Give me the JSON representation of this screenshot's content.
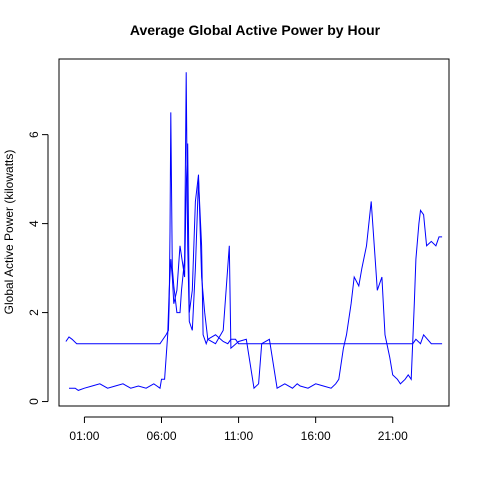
{
  "chart_data": {
    "type": "line",
    "title": "Average Global Active Power by Hour",
    "xlabel": "",
    "ylabel": "Global Active Power (kilowatts)",
    "xlim": [
      -0.65,
      24.65
    ],
    "ylim": [
      -0.1,
      7.7
    ],
    "x_ticks": [
      {
        "value": 1,
        "label": "01:00"
      },
      {
        "value": 6,
        "label": "06:00"
      },
      {
        "value": 11,
        "label": "11:00"
      },
      {
        "value": 16,
        "label": "16:00"
      },
      {
        "value": 21,
        "label": "21:00"
      }
    ],
    "y_ticks": [
      0,
      2,
      4,
      6
    ],
    "grid": false,
    "line_color": "#0000ff",
    "series": [
      {
        "x": [
          -0.2,
          0,
          0.2,
          0.5,
          0.6,
          1.0,
          1.5,
          2.0,
          2.5,
          3.0,
          3.5,
          4.0,
          4.5,
          5.0,
          5.5,
          5.9,
          6.0,
          6.3,
          6.45,
          6.5,
          6.55,
          6.6,
          6.7,
          6.8,
          7.0,
          7.2,
          7.3,
          7.5,
          7.6,
          7.7,
          7.8,
          8.0,
          8.2,
          8.4,
          8.6,
          8.7,
          8.8,
          8.9,
          9.0,
          9.5,
          10.0,
          10.3,
          10.5,
          10.8,
          11.0,
          11.3,
          11.5,
          12.0,
          12.5,
          12.8,
          13.0,
          13.5,
          14.0,
          14.5,
          15.0,
          15.5,
          16.0,
          16.5,
          17.0,
          17.5,
          17.8,
          18.0,
          18.5,
          19.0,
          19.3,
          19.5,
          19.8,
          20.0,
          20.5,
          21.0,
          21.5,
          22.0,
          22.3,
          22.5,
          22.8,
          23.0,
          23.5,
          24.0,
          24.2
        ],
        "y": [
          1.35,
          1.45,
          1.4,
          1.3,
          1.3,
          1.3,
          1.3,
          1.3,
          1.3,
          1.3,
          1.3,
          1.3,
          1.3,
          1.3,
          1.3,
          1.3,
          1.35,
          1.5,
          1.6,
          2.2,
          3.8,
          6.5,
          3.0,
          2.6,
          2.0,
          2.0,
          2.5,
          3.2,
          7.4,
          3.5,
          1.8,
          1.6,
          3.0,
          5.0,
          3.5,
          1.5,
          1.4,
          1.3,
          1.4,
          1.5,
          1.35,
          1.3,
          1.4,
          1.4,
          1.3,
          1.3,
          1.3,
          1.3,
          1.3,
          1.3,
          1.3,
          1.3,
          1.3,
          1.3,
          1.3,
          1.3,
          1.3,
          1.3,
          1.3,
          1.3,
          1.3,
          1.3,
          1.3,
          1.3,
          1.3,
          1.3,
          1.3,
          1.3,
          1.3,
          1.3,
          1.3,
          1.3,
          1.3,
          1.4,
          1.3,
          1.5,
          1.3,
          1.3,
          1.3
        ]
      },
      {
        "x": [
          0,
          0.2,
          0.4,
          0.6,
          1.0,
          1.5,
          2.0,
          2.5,
          3.0,
          3.5,
          4.0,
          4.5,
          5.0,
          5.5,
          5.7,
          5.9,
          6.0,
          6.2,
          6.4,
          6.5,
          6.6,
          6.7,
          6.8,
          7.0,
          7.2,
          7.5,
          7.6,
          7.7,
          7.8,
          8.0,
          8.2,
          8.4,
          8.6,
          8.8,
          9.0,
          9.5,
          10.0,
          10.4,
          10.5,
          11.0,
          11.5,
          12.0,
          12.3,
          12.5,
          13.0,
          13.5,
          14.0,
          14.5,
          14.8,
          15.0,
          15.5,
          16.0,
          16.5,
          17.0,
          17.3,
          17.5,
          17.8,
          18.0,
          18.3,
          18.5,
          18.8,
          19.0,
          19.3,
          19.6,
          19.9,
          20.0,
          20.3,
          20.5,
          20.8,
          21.0,
          21.3,
          21.5,
          21.8,
          22.0,
          22.2,
          22.4,
          22.5,
          22.7,
          22.8,
          23.0,
          23.2,
          23.5,
          23.8,
          24.0,
          24.2
        ],
        "y": [
          0.3,
          0.3,
          0.3,
          0.25,
          0.3,
          0.35,
          0.4,
          0.3,
          0.35,
          0.4,
          0.3,
          0.35,
          0.3,
          0.4,
          0.35,
          0.3,
          0.5,
          0.5,
          1.5,
          2.5,
          3.2,
          2.8,
          2.2,
          2.5,
          3.5,
          2.8,
          4.8,
          5.8,
          2.0,
          2.5,
          4.5,
          5.1,
          2.8,
          2.0,
          1.4,
          1.3,
          1.6,
          3.5,
          1.2,
          1.35,
          1.4,
          0.3,
          0.4,
          1.3,
          1.4,
          0.3,
          0.4,
          0.3,
          0.4,
          0.35,
          0.3,
          0.4,
          0.35,
          0.3,
          0.4,
          0.5,
          1.2,
          1.5,
          2.2,
          2.8,
          2.6,
          3.0,
          3.5,
          4.5,
          3.0,
          2.5,
          2.8,
          1.5,
          1.0,
          0.6,
          0.5,
          0.4,
          0.5,
          0.6,
          0.5,
          2.2,
          3.2,
          4.0,
          4.3,
          4.2,
          3.5,
          3.6,
          3.5,
          3.7,
          3.7
        ]
      }
    ]
  }
}
